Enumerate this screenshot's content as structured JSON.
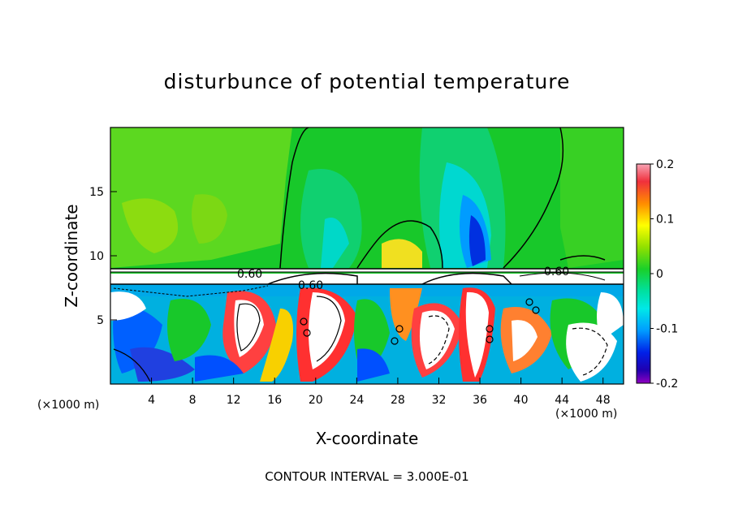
{
  "chart_data": {
    "type": "heatmap",
    "title": "disturbunce of potential temperature",
    "xlabel": "X-coordinate",
    "ylabel": "Z-coordinate",
    "x_unit": "(×1000 m)",
    "z_unit": "(×1000 m)",
    "xlim": [
      0,
      50
    ],
    "ylim": [
      0,
      20
    ],
    "x_ticks": [
      4,
      8,
      12,
      16,
      20,
      24,
      28,
      32,
      36,
      40,
      44,
      48
    ],
    "y_ticks": [
      5,
      10,
      15
    ],
    "colorbar": {
      "min": -0.2,
      "max": 0.2,
      "tick_labels": [
        "0.2",
        "0.1",
        "0",
        "-0.1",
        "-0.2"
      ],
      "tick_values": [
        0.2,
        0.1,
        0,
        -0.1,
        -0.2
      ]
    },
    "contour_labels": [
      "0.60",
      "0.60",
      "0.60"
    ],
    "contour_interval_text": "CONTOUR INTERVAL = 3.000E-01"
  }
}
